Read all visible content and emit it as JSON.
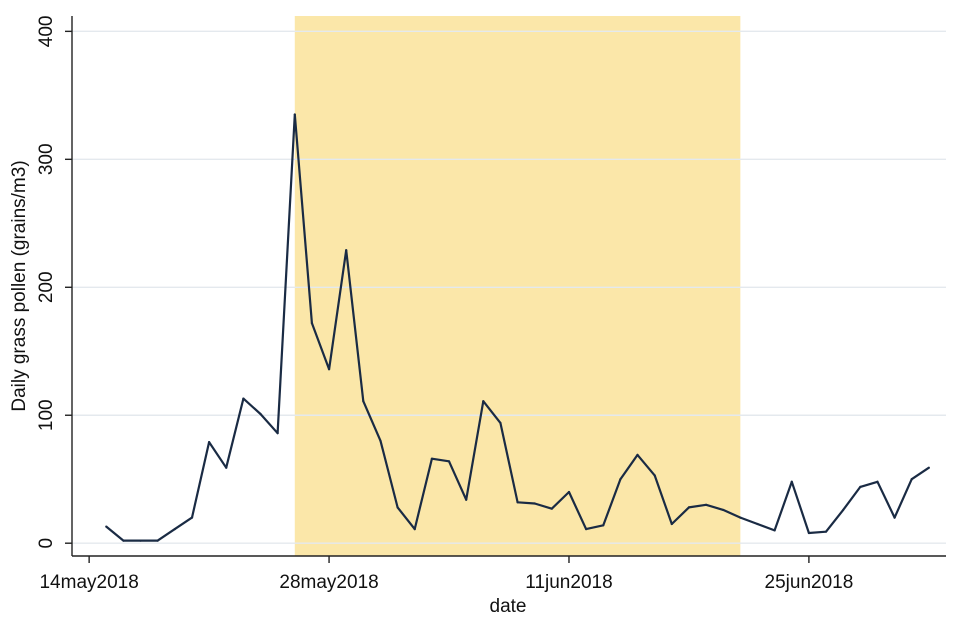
{
  "chart_data": {
    "type": "line",
    "title": "",
    "xlabel": "date",
    "ylabel": "Daily grass pollen (grains/m3)",
    "x_type": "date",
    "xlim": [
      "2018-05-13",
      "2018-07-03"
    ],
    "ylim": [
      -10,
      412
    ],
    "x_ticks": [
      {
        "date": "2018-05-14",
        "label": "14may2018"
      },
      {
        "date": "2018-05-28",
        "label": "28may2018"
      },
      {
        "date": "2018-06-11",
        "label": "11jun2018"
      },
      {
        "date": "2018-06-25",
        "label": "25jun2018"
      }
    ],
    "y_ticks": [
      {
        "value": 0,
        "label": "0"
      },
      {
        "value": 100,
        "label": "100"
      },
      {
        "value": 200,
        "label": "200"
      },
      {
        "value": 300,
        "label": "300"
      },
      {
        "value": 400,
        "label": "400"
      }
    ],
    "grid": true,
    "legend": "none",
    "shaded_region": {
      "start": "2018-05-26",
      "end": "2018-06-21",
      "color": "#fbe7a9"
    },
    "series": [
      {
        "color": "#1a2b44",
        "points": [
          [
            "2018-05-15",
            13
          ],
          [
            "2018-05-16",
            2
          ],
          [
            "2018-05-17",
            2
          ],
          [
            "2018-05-18",
            2
          ],
          [
            "2018-05-19",
            11
          ],
          [
            "2018-05-20",
            20
          ],
          [
            "2018-05-21",
            79
          ],
          [
            "2018-05-22",
            59
          ],
          [
            "2018-05-23",
            113
          ],
          [
            "2018-05-24",
            101
          ],
          [
            "2018-05-25",
            86
          ],
          [
            "2018-05-26",
            335
          ],
          [
            "2018-05-27",
            172
          ],
          [
            "2018-05-28",
            136
          ],
          [
            "2018-05-29",
            229
          ],
          [
            "2018-05-30",
            111
          ],
          [
            "2018-05-31",
            80
          ],
          [
            "2018-06-01",
            28
          ],
          [
            "2018-06-02",
            11
          ],
          [
            "2018-06-03",
            66
          ],
          [
            "2018-06-04",
            64
          ],
          [
            "2018-06-05",
            34
          ],
          [
            "2018-06-06",
            111
          ],
          [
            "2018-06-07",
            94
          ],
          [
            "2018-06-08",
            32
          ],
          [
            "2018-06-09",
            31
          ],
          [
            "2018-06-10",
            27
          ],
          [
            "2018-06-11",
            40
          ],
          [
            "2018-06-12",
            11
          ],
          [
            "2018-06-13",
            14
          ],
          [
            "2018-06-14",
            50
          ],
          [
            "2018-06-15",
            69
          ],
          [
            "2018-06-16",
            53
          ],
          [
            "2018-06-17",
            15
          ],
          [
            "2018-06-18",
            28
          ],
          [
            "2018-06-19",
            30
          ],
          [
            "2018-06-20",
            26
          ],
          [
            "2018-06-21",
            20
          ],
          [
            "2018-06-22",
            15
          ],
          [
            "2018-06-23",
            10
          ],
          [
            "2018-06-24",
            48
          ],
          [
            "2018-06-25",
            8
          ],
          [
            "2018-06-26",
            9
          ],
          [
            "2018-06-27",
            26
          ],
          [
            "2018-06-28",
            44
          ],
          [
            "2018-06-29",
            48
          ],
          [
            "2018-06-30",
            20
          ],
          [
            "2018-07-01",
            50
          ],
          [
            "2018-07-02",
            59
          ]
        ]
      }
    ],
    "colors": {
      "line": "#1a2b44",
      "shade": "#fbe7a9",
      "grid": "#e4e9ee",
      "axis": "#222222"
    }
  }
}
